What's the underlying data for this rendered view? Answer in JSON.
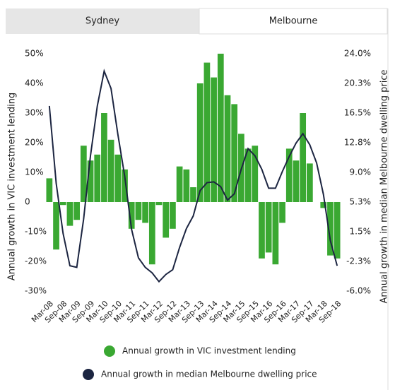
{
  "tabs": [
    "Sydney",
    "Melbourne"
  ],
  "active_tab": 1,
  "chart_data": {
    "type": "combo",
    "y_label": "Annual growth in VIC investment lending",
    "y2_label": "Annual growth in median Melbourne dwelling price",
    "categories": [
      "Mar-08",
      null,
      "Sep-08",
      null,
      "Mar-09",
      null,
      "Sep-09",
      null,
      "Mar-10",
      null,
      "Sep-10",
      null,
      "Mar-11",
      null,
      "Sep-11",
      null,
      "Mar-12",
      null,
      "Sep-12",
      null,
      "Mar-13",
      null,
      "Sep-13",
      null,
      "Mar-14",
      null,
      "Sep-14",
      null,
      "Mar-15",
      null,
      "Sep-15",
      null,
      "Mar-16",
      null,
      "Sep-16",
      null,
      "Mar-17",
      null,
      "Sep-17",
      null,
      "Mar-18",
      null,
      "Sep-18"
    ],
    "series": [
      {
        "name": "Annual growth in VIC investment lending",
        "type": "bar",
        "color": "#3aa832",
        "values": [
          8,
          -16,
          -1,
          -8,
          -6,
          19,
          14,
          16,
          30,
          21,
          16,
          11,
          -9,
          -6,
          -7,
          -21,
          -1,
          -12,
          -9,
          12,
          11,
          5,
          40,
          47,
          42,
          50,
          36,
          33,
          23,
          18,
          19,
          -19,
          -17,
          -21,
          -7,
          18,
          14,
          30,
          13,
          0,
          -2,
          -18,
          -19
        ]
      },
      {
        "name": "Annual growth in median Melbourne dwelling price",
        "type": "line",
        "axis": "y2",
        "color": "#1c2541",
        "values": [
          17.4,
          7.6,
          1.3,
          -2.8,
          -3.0,
          3.1,
          11.1,
          17.4,
          21.8,
          19.6,
          13.8,
          8.5,
          1.8,
          -1.8,
          -3.0,
          -3.7,
          -4.8,
          -3.9,
          -3.3,
          -0.5,
          1.9,
          3.5,
          6.7,
          7.7,
          7.8,
          7.2,
          5.5,
          6.3,
          9.4,
          12.0,
          11.1,
          9.4,
          7.0,
          7.0,
          9.1,
          11.0,
          12.7,
          13.9,
          12.5,
          10.2,
          6.2,
          0.4,
          -2.8
        ]
      }
    ],
    "ylim": [
      -30,
      50
    ],
    "yticks": [
      {
        "value": 50,
        "label": "50%"
      },
      {
        "value": 40,
        "label": "40%"
      },
      {
        "value": 30,
        "label": "30%"
      },
      {
        "value": 20,
        "label": "20%"
      },
      {
        "value": 10,
        "label": "10%"
      },
      0,
      {
        "value": -10,
        "label": "-10%"
      },
      {
        "value": -20,
        "label": "-20%"
      },
      {
        "value": -30,
        "label": "-30%"
      }
    ],
    "y2lim": [
      -6,
      24
    ],
    "y2ticks": [
      {
        "value": 24,
        "label": "24.0%"
      },
      {
        "value": 20.25,
        "label": "20.3%"
      },
      {
        "value": 16.5,
        "label": "16.5%"
      },
      {
        "value": 12.75,
        "label": "12.8%"
      },
      {
        "value": 9,
        "label": "9.0%"
      },
      {
        "value": 5.25,
        "label": "5.3%"
      },
      {
        "value": 1.5,
        "label": "1.5%"
      },
      {
        "value": -2.25,
        "label": "-2.3%"
      },
      {
        "value": -6,
        "label": "-6.0%"
      }
    ]
  }
}
